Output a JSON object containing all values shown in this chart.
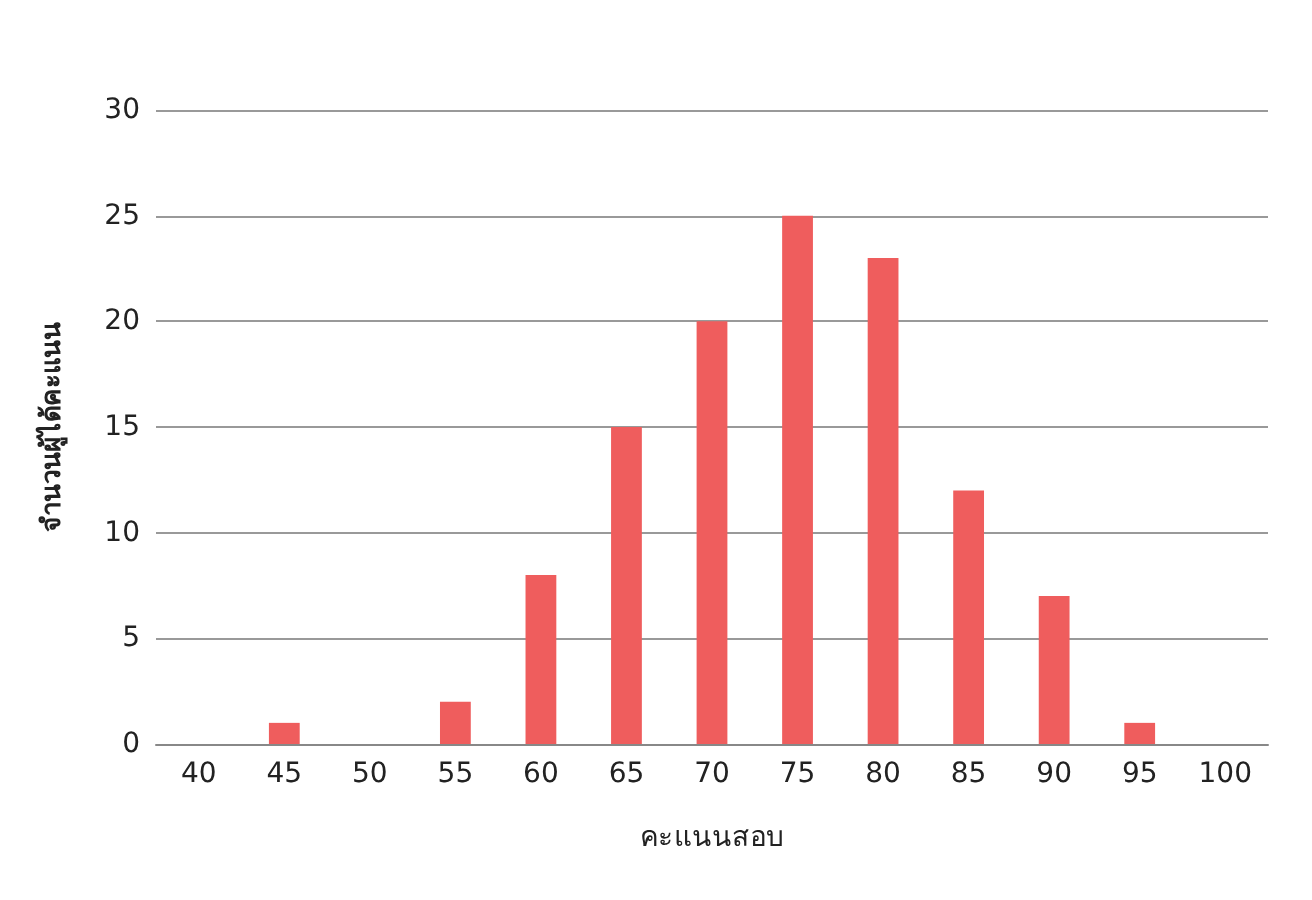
{
  "chart_data": {
    "type": "bar",
    "xlabel": "คะแนนสอบ",
    "ylabel": "จำนวนผู้ได้คะแนน",
    "categories": [
      "40",
      "45",
      "50",
      "55",
      "60",
      "65",
      "70",
      "75",
      "80",
      "85",
      "90",
      "95",
      "100"
    ],
    "values": [
      0,
      1,
      0,
      2,
      8,
      15,
      20,
      25,
      23,
      12,
      7,
      1,
      0
    ],
    "color": "#ef5d5d",
    "ylim": [
      0,
      30
    ],
    "yticks": [
      0,
      5,
      10,
      15,
      20,
      25,
      30
    ],
    "grid": "y"
  }
}
